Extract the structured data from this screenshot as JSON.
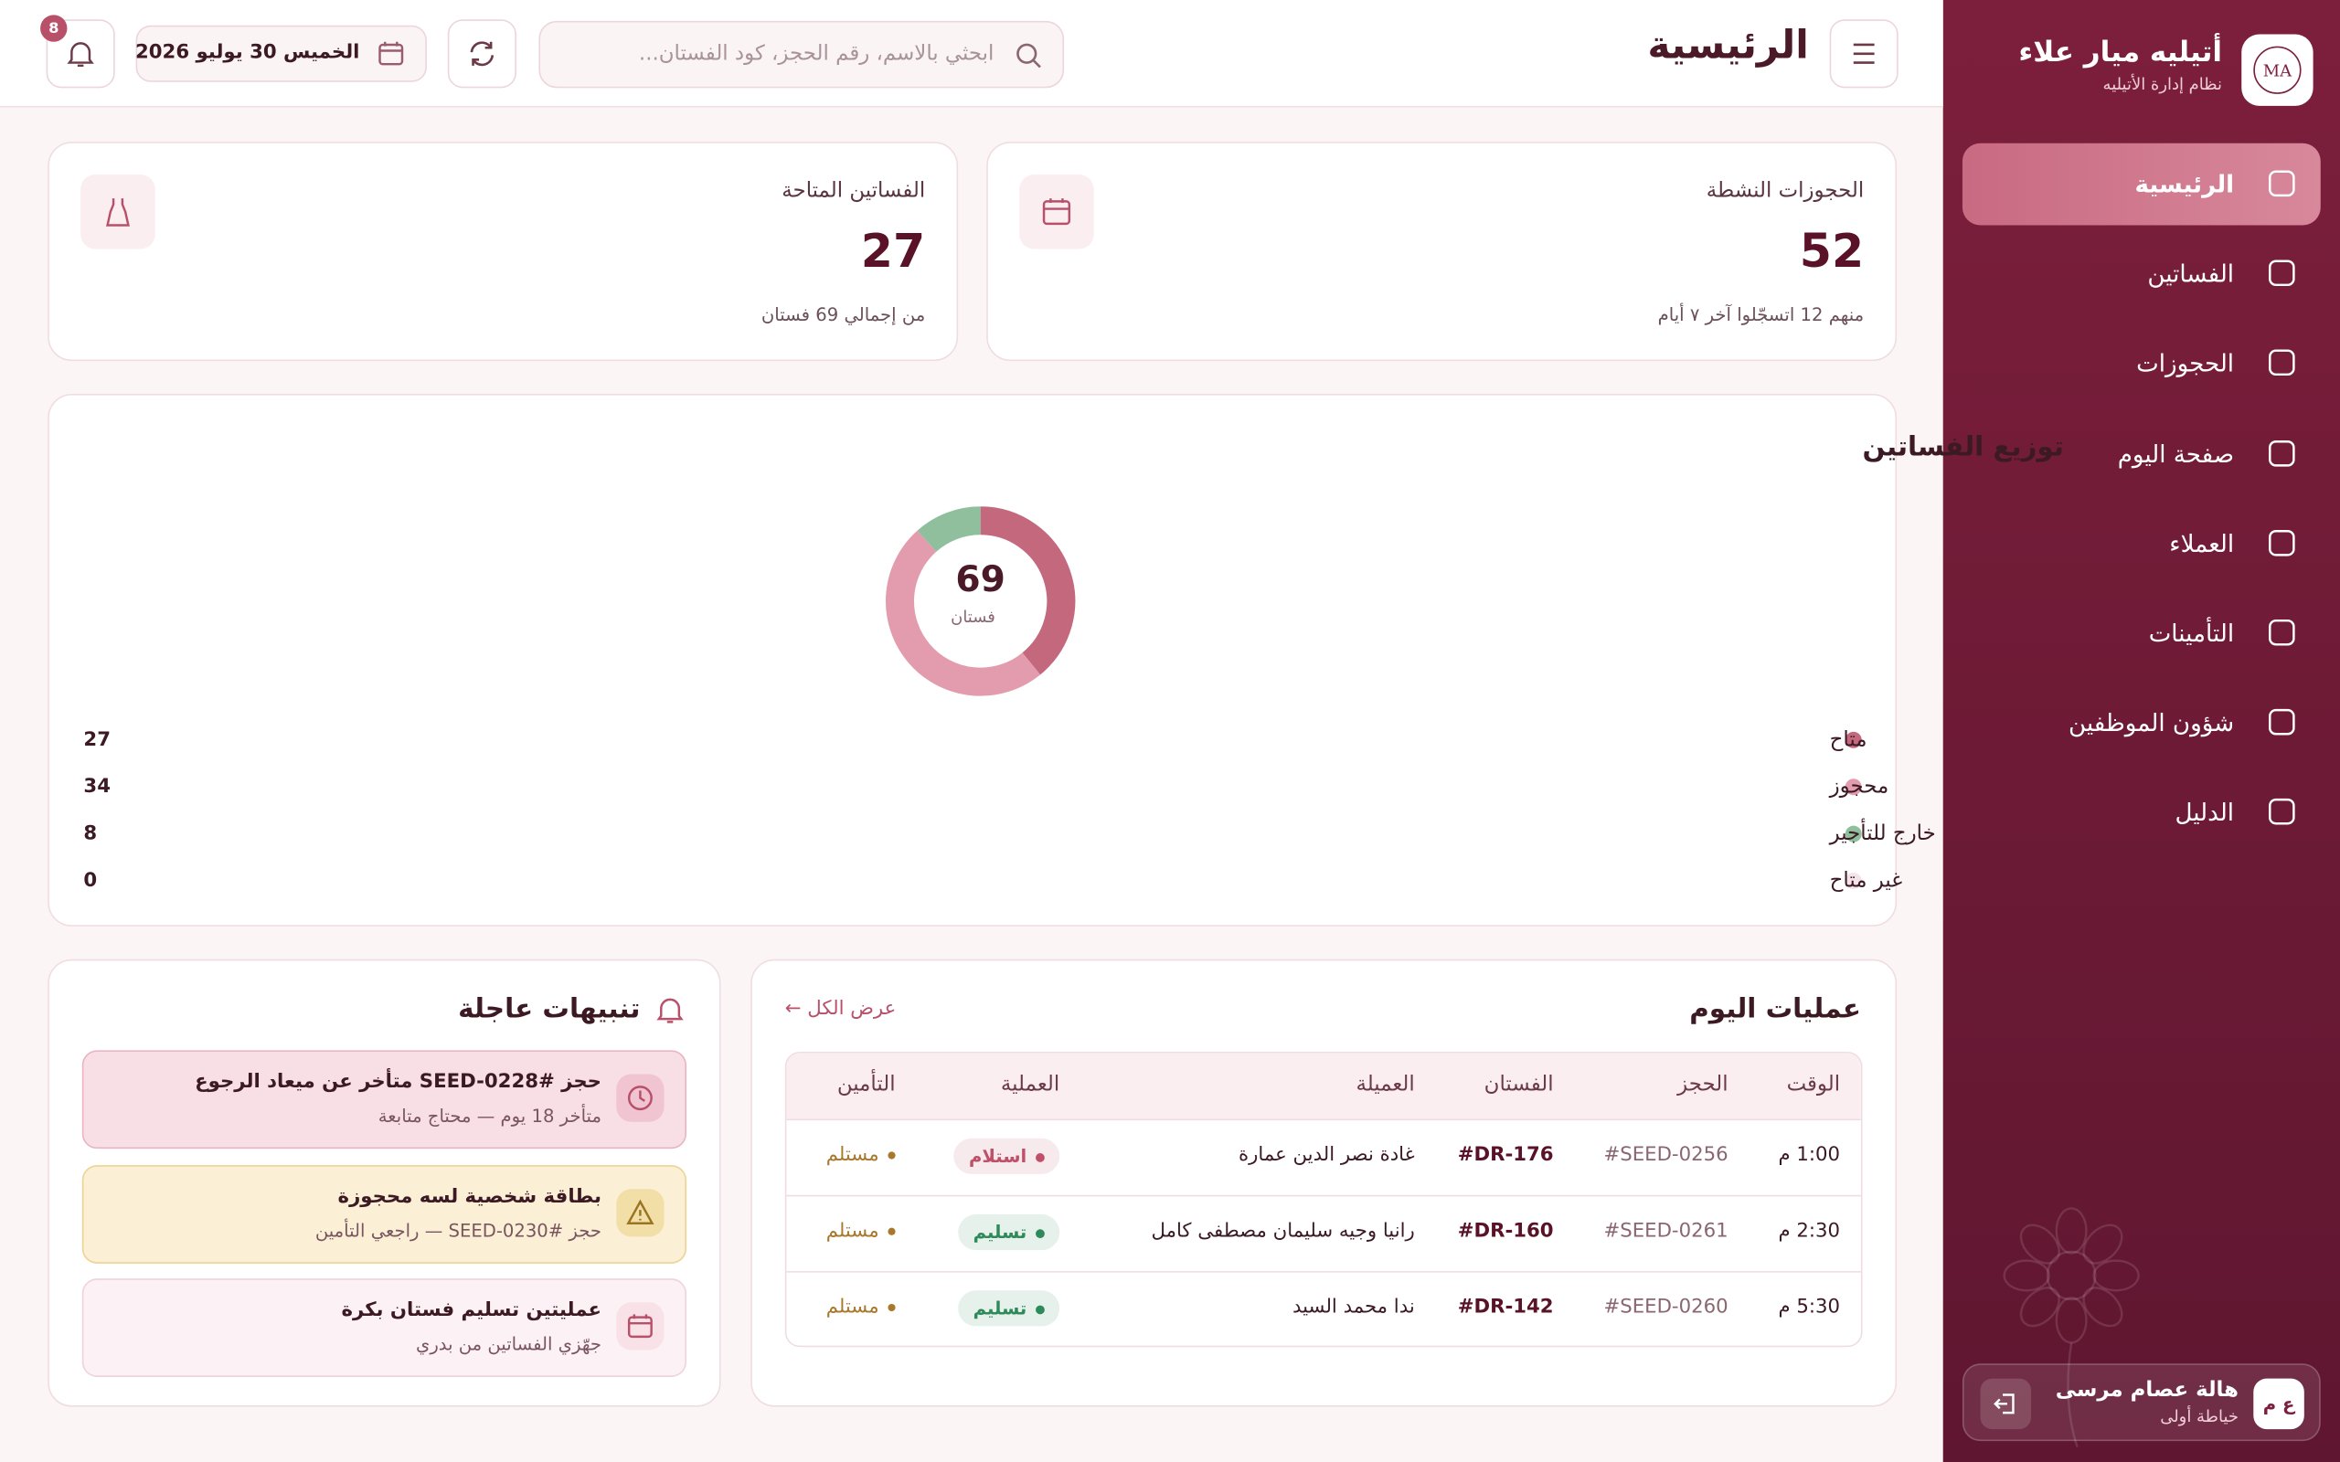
{
  "sidebar": {
    "logo": "MA",
    "brand": "أتيليه ميار علاء",
    "subtitle": "نظام إدارة الأتيليه",
    "nav": [
      {
        "label": "الرئيسية",
        "active": true
      },
      {
        "label": "الفساتين",
        "active": false
      },
      {
        "label": "الحجوزات",
        "active": false
      },
      {
        "label": "صفحة اليوم",
        "active": false
      },
      {
        "label": "العملاء",
        "active": false
      },
      {
        "label": "التأمينات",
        "active": false
      },
      {
        "label": "شؤون الموظفين",
        "active": false
      },
      {
        "label": "الدليل",
        "active": false
      }
    ],
    "user": {
      "initials": "ع م",
      "name": "هالة عصام مرسى",
      "role": "خياطة أولى"
    }
  },
  "header": {
    "title": "الرئيسية",
    "search_placeholder": "ابحثي بالاسم، رقم الحجز، كود الفستان...",
    "date": "الخميس 30 يوليو 2026",
    "notifications": 8
  },
  "stats": [
    {
      "label": "الحجوزات النشطة",
      "value": 52,
      "note": "منهم 12 اتسجّلوا آخر ٧ أيام"
    },
    {
      "label": "الفساتين المتاحة",
      "value": 27,
      "note": "من إجمالي 69 فستان"
    }
  ],
  "chart_data": {
    "type": "donut",
    "title": "توزيع الفساتين",
    "center_value": 69,
    "center_label": "فستان",
    "categories": [
      "متاح",
      "محجوز",
      "خارج للتأجير",
      "غير متاح"
    ],
    "values": [
      27,
      34,
      8,
      0
    ],
    "colors": [
      "#c4687e",
      "#e39cae",
      "#8fbf9d",
      "#f4e3e8"
    ]
  },
  "today": {
    "title": "عمليات اليوم",
    "view_all": "عرض الكل ←",
    "columns": [
      "الوقت",
      "الحجز",
      "الفستان",
      "العميلة",
      "العملية",
      "التأمين"
    ],
    "rows": [
      {
        "time": "1:00 م",
        "booking": "#SEED-0256",
        "dress": "#DR-176",
        "client": "غادة نصر الدين عمارة",
        "operation": "استلام",
        "operation_color": "#c0506a",
        "deposit": "مستلم"
      },
      {
        "time": "2:30 م",
        "booking": "#SEED-0261",
        "dress": "#DR-160",
        "client": "رانيا وجيه سليمان مصطفى كامل",
        "operation": "تسليم",
        "operation_color": "#2f8a5a",
        "deposit": "مستلم"
      },
      {
        "time": "5:30 م",
        "booking": "#SEED-0260",
        "dress": "#DR-142",
        "client": "ندا محمد السيد",
        "operation": "تسليم",
        "operation_color": "#2f8a5a",
        "deposit": "مستلم"
      }
    ]
  },
  "alerts": {
    "title": "تنبيهات عاجلة",
    "items": [
      {
        "title": "حجز #SEED-0228 متأخر عن ميعاد الرجوع",
        "subtitle": "متأخر 18 يوم — محتاج متابعة"
      },
      {
        "title": "بطاقة شخصية لسه محجوزة",
        "subtitle": "حجز #SEED-0230 — راجعي التأمين"
      },
      {
        "title": "عمليتين تسليم فستان بكرة",
        "subtitle": "جهّزي الفساتين من بدري"
      }
    ]
  }
}
